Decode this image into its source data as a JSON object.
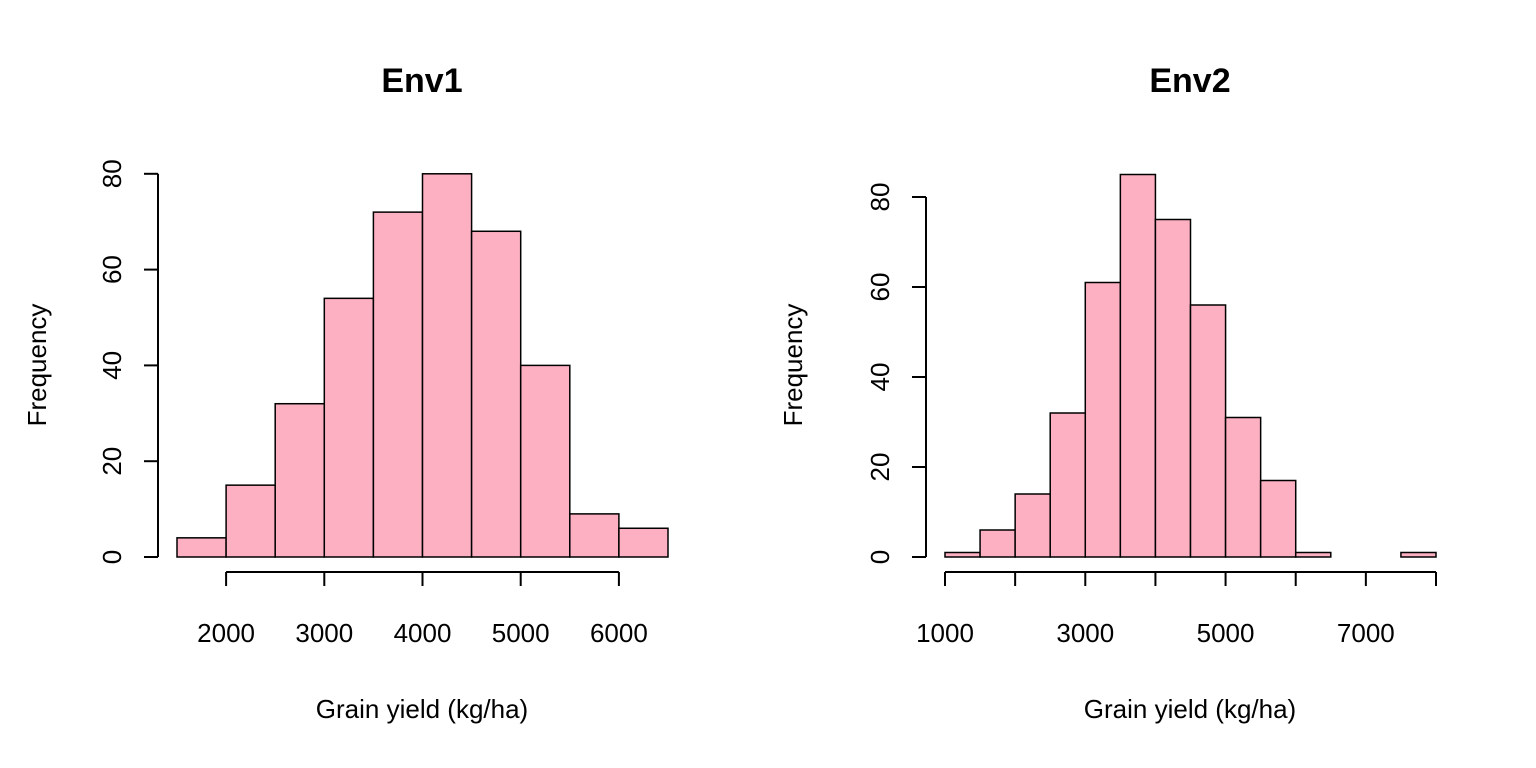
{
  "colors": {
    "bar_fill": "#FDB0C2",
    "bar_stroke": "#000000",
    "axis": "#000000",
    "background": "#FFFFFF"
  },
  "chart_data": [
    {
      "type": "bar",
      "title": "Env1",
      "xlabel": "Grain yield (kg/ha)",
      "ylabel": "Frequency",
      "bin_edges": [
        1500,
        2000,
        2500,
        3000,
        3500,
        4000,
        4500,
        5000,
        5500,
        6000,
        6500
      ],
      "values": [
        4,
        15,
        32,
        54,
        72,
        80,
        68,
        40,
        9,
        6
      ],
      "xlim": [
        1500,
        6500
      ],
      "ylim": [
        0,
        80
      ],
      "x_ticks": [
        2000,
        3000,
        4000,
        5000,
        6000
      ],
      "x_tick_labels": [
        "2000",
        "3000",
        "4000",
        "5000",
        "6000"
      ],
      "x_axis_range": [
        2000,
        6000
      ],
      "y_ticks": [
        0,
        20,
        40,
        60,
        80
      ],
      "y_tick_labels": [
        "0",
        "20",
        "40",
        "60",
        "80"
      ],
      "grid": false
    },
    {
      "type": "bar",
      "title": "Env2",
      "xlabel": "Grain yield (kg/ha)",
      "ylabel": "Frequency",
      "bin_edges": [
        1000,
        1500,
        2000,
        2500,
        3000,
        3500,
        4000,
        4500,
        5000,
        5500,
        6000,
        6500,
        7000,
        7500,
        8000
      ],
      "values": [
        1,
        6,
        14,
        32,
        61,
        85,
        75,
        56,
        31,
        17,
        1,
        0,
        0,
        1
      ],
      "xlim": [
        1000,
        8000
      ],
      "ylim": [
        0,
        85
      ],
      "x_ticks": [
        1000,
        2000,
        3000,
        4000,
        5000,
        6000,
        7000,
        8000
      ],
      "x_tick_labels": [
        "1000",
        "",
        "3000",
        "",
        "5000",
        "",
        "7000",
        ""
      ],
      "x_axis_range": [
        1000,
        8000
      ],
      "y_ticks": [
        0,
        20,
        40,
        60,
        80
      ],
      "y_tick_labels": [
        "0",
        "20",
        "40",
        "60",
        "80"
      ],
      "grid": false
    }
  ]
}
